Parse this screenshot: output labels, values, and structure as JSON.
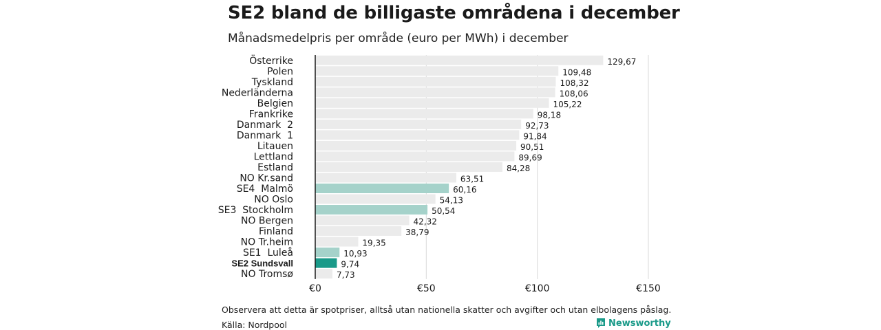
{
  "header": {
    "title": "SE2 bland de billigaste områdena i december",
    "subtitle": "Månadsmedelpris per område (euro per MWh) i december"
  },
  "footer": {
    "note": "Observera att detta är spotpriser, alltså utan nationella skatter och avgifter och utan elbolagens påslag.",
    "source": "Källa: Nordpool",
    "brand": "Newsworthy",
    "brand_icon": "newsworthy-logo-icon"
  },
  "colors": {
    "bar_default": "#ebebeb",
    "bar_se_light": "#a5d2ca",
    "bar_se2": "#1a9a89",
    "grid": "#d9d9d9",
    "axis": "#1a1a1a",
    "brand": "#1a9a89"
  },
  "chart_data": {
    "type": "bar",
    "orientation": "horizontal",
    "title": "SE2 bland de billigaste områdena i december",
    "subtitle": "Månadsmedelpris per område (euro per MWh) i december",
    "categories": [
      "Österrike",
      "Polen",
      "Tyskland",
      "Nederländerna",
      "Belgien",
      "Frankrike",
      "Danmark  2",
      "Danmark  1",
      "Litauen",
      "Lettland",
      "Estland",
      "NO Kr.sand",
      "SE4  Malmö",
      "NO Oslo",
      "SE3  Stockholm",
      "NO Bergen",
      "Finland",
      "NO Tr.heim",
      "SE1  Luleå",
      "SE2 Sundsvall",
      "NO Tromsø"
    ],
    "values": [
      129.67,
      109.48,
      108.32,
      108.06,
      105.22,
      98.18,
      92.73,
      91.84,
      90.51,
      89.69,
      84.28,
      63.51,
      60.16,
      54.13,
      50.54,
      42.32,
      38.79,
      19.35,
      10.93,
      9.74,
      7.73
    ],
    "value_labels": [
      "129,67",
      "109,48",
      "108,32",
      "108,06",
      "105,22",
      "98,18",
      "92,73",
      "91,84",
      "90,51",
      "89,69",
      "84,28",
      "63,51",
      "60,16",
      "54,13",
      "50,54",
      "42,32",
      "38,79",
      "19,35",
      "10,93",
      "9,74",
      "7,73"
    ],
    "highlight": [
      "default",
      "default",
      "default",
      "default",
      "default",
      "default",
      "default",
      "default",
      "default",
      "default",
      "default",
      "default",
      "se_light",
      "default",
      "se_light",
      "default",
      "default",
      "default",
      "se_light",
      "se2",
      "default"
    ],
    "bold_labels": [
      "SE2 Sundsvall"
    ],
    "xlim": [
      0,
      150
    ],
    "xticks": [
      0,
      50,
      100,
      150
    ],
    "xtick_labels": [
      "€0",
      "€50",
      "€100",
      "€150"
    ],
    "grid": true,
    "legend": "none"
  }
}
